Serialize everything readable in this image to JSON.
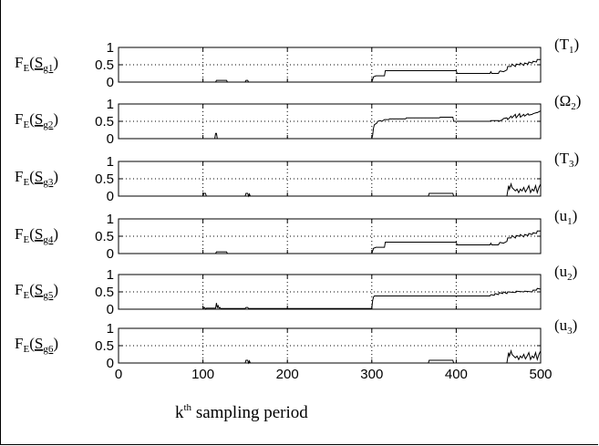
{
  "chart_data": {
    "type": "line",
    "xlabel": {
      "base": "k",
      "sup": "th",
      "rest": " sampling period"
    },
    "xlim": [
      0,
      500
    ],
    "xticks": [
      0,
      100,
      200,
      300,
      400,
      500
    ],
    "panels": [
      {
        "ylabel": {
          "pre": "F",
          "sub": "E",
          "open": "(",
          "S": "S",
          "g": "g1",
          "close": ")"
        },
        "right_label": {
          "pre": "(T",
          "sub": "1",
          "post": ")"
        },
        "ylim": [
          0,
          1
        ],
        "yticks": [
          0,
          0.5,
          1
        ],
        "series": [
          {
            "x": [
              0,
              115,
              116,
              128,
              129,
              150,
              151,
              153,
              154,
              300,
              302,
              305,
              315,
              316,
              400,
              401,
              405,
              440,
              441,
              442,
              450,
              451,
              452,
              456,
              460,
              461,
              465,
              466,
              470,
              471,
              475,
              476,
              480,
              481,
              485,
              486,
              490,
              491,
              495,
              496,
              500
            ],
            "y": [
              0,
              0,
              0.05,
              0.05,
              0,
              0,
              0.05,
              0.05,
              0,
              0,
              0.15,
              0.18,
              0.18,
              0.33,
              0.33,
              0.25,
              0.25,
              0.25,
              0.3,
              0.25,
              0.25,
              0.3,
              0.32,
              0.3,
              0.35,
              0.45,
              0.45,
              0.52,
              0.45,
              0.52,
              0.5,
              0.55,
              0.48,
              0.55,
              0.52,
              0.58,
              0.55,
              0.6,
              0.58,
              0.65,
              0.65
            ]
          }
        ]
      },
      {
        "ylabel": {
          "pre": "F",
          "sub": "E",
          "open": "(",
          "S": "S",
          "g": "g2",
          "close": ")"
        },
        "right_label": {
          "pre": "(Ω",
          "sub": "2",
          "post": ")"
        },
        "ylim": [
          0,
          1
        ],
        "yticks": [
          0,
          0.5,
          1
        ],
        "series": [
          {
            "x": [
              0,
              114,
              115,
              116,
              117,
              300,
              301,
              302,
              303,
              306,
              307,
              310,
              312,
              315,
              320,
              321,
              340,
              341,
              380,
              381,
              396,
              397,
              440,
              441,
              450,
              451,
              455,
              456,
              460,
              461,
              465,
              466,
              470,
              471,
              475,
              476,
              480,
              481,
              485,
              486,
              490,
              491,
              495,
              496,
              500
            ],
            "y": [
              0,
              0,
              0.15,
              0.15,
              0,
              0,
              0.1,
              0.3,
              0.4,
              0.45,
              0.5,
              0.52,
              0.5,
              0.55,
              0.55,
              0.57,
              0.57,
              0.6,
              0.6,
              0.62,
              0.62,
              0.5,
              0.5,
              0.52,
              0.52,
              0.5,
              0.55,
              0.58,
              0.6,
              0.55,
              0.65,
              0.6,
              0.7,
              0.6,
              0.72,
              0.62,
              0.7,
              0.65,
              0.72,
              0.68,
              0.7,
              0.72,
              0.75,
              0.75,
              0.8
            ]
          }
        ]
      },
      {
        "ylabel": {
          "pre": "F",
          "sub": "E",
          "open": "(",
          "S": "S",
          "g": "g3",
          "close": ")"
        },
        "right_label": {
          "pre": "(T",
          "sub": "3",
          "post": ")"
        },
        "ylim": [
          0,
          1
        ],
        "yticks": [
          0,
          0.5,
          1
        ],
        "series": [
          {
            "x": [
              0,
              100,
              101,
              103,
              104,
              150,
              151,
              153,
              154,
              155,
              156,
              367,
              368,
              396,
              397,
              460,
              462,
              463,
              465,
              466,
              468,
              470,
              472,
              474,
              476,
              478,
              480,
              482,
              484,
              486,
              488,
              490,
              492,
              494,
              496,
              498,
              500
            ],
            "y": [
              0,
              0,
              0.08,
              0.08,
              0,
              0,
              0.08,
              0.08,
              0,
              0.06,
              0,
              0,
              0.08,
              0.08,
              0,
              0,
              0.3,
              0.2,
              0.35,
              0.25,
              0.2,
              0.15,
              0.2,
              0.1,
              0.2,
              0.15,
              0.25,
              0.12,
              0.2,
              0.3,
              0.1,
              0.2,
              0.15,
              0.3,
              0.1,
              0.25,
              0.35
            ]
          }
        ]
      },
      {
        "ylabel": {
          "pre": "F",
          "sub": "E",
          "open": "(",
          "S": "S",
          "g": "g4",
          "close": ")"
        },
        "right_label": {
          "pre": "(u",
          "sub": "1",
          "post": ")"
        },
        "ylim": [
          0,
          1
        ],
        "yticks": [
          0,
          0.5,
          1
        ],
        "series": [
          {
            "x": [
              0,
              115,
              116,
              128,
              129,
              300,
              302,
              305,
              315,
              316,
              400,
              401,
              405,
              440,
              441,
              442,
              450,
              451,
              452,
              456,
              460,
              461,
              465,
              466,
              470,
              471,
              475,
              476,
              480,
              481,
              485,
              486,
              490,
              491,
              495,
              496,
              500
            ],
            "y": [
              0,
              0,
              0.05,
              0.05,
              0,
              0,
              0.15,
              0.18,
              0.18,
              0.33,
              0.33,
              0.25,
              0.25,
              0.25,
              0.3,
              0.25,
              0.25,
              0.3,
              0.32,
              0.3,
              0.35,
              0.45,
              0.45,
              0.52,
              0.45,
              0.52,
              0.5,
              0.55,
              0.48,
              0.55,
              0.52,
              0.58,
              0.55,
              0.6,
              0.58,
              0.65,
              0.65
            ]
          }
        ]
      },
      {
        "ylabel": {
          "pre": "F",
          "sub": "E",
          "open": "(",
          "S": "S",
          "g": "g5",
          "close": ")"
        },
        "right_label": {
          "pre": "(u",
          "sub": "2",
          "post": ")"
        },
        "ylim": [
          0,
          1
        ],
        "yticks": [
          0,
          0.5,
          1
        ],
        "series": [
          {
            "x": [
              0,
              100,
              101,
              102,
              103,
              104,
              115,
              116,
              117,
              118,
              119,
              120,
              121,
              150,
              151,
              153,
              154,
              300,
              301,
              302,
              303,
              440,
              441,
              445,
              446,
              450,
              451,
              455,
              456,
              460,
              461,
              470,
              471,
              480,
              481,
              490,
              491,
              495,
              496,
              500
            ],
            "y": [
              0,
              0,
              0.05,
              0.05,
              0,
              0.03,
              0.03,
              0.18,
              0.05,
              0.1,
              0.03,
              0.05,
              0.02,
              0.02,
              0.05,
              0.05,
              0.02,
              0.02,
              0.25,
              0.35,
              0.38,
              0.38,
              0.42,
              0.4,
              0.45,
              0.42,
              0.48,
              0.45,
              0.5,
              0.45,
              0.5,
              0.48,
              0.52,
              0.5,
              0.52,
              0.5,
              0.55,
              0.55,
              0.6,
              0.58
            ]
          }
        ]
      },
      {
        "ylabel": {
          "pre": "F",
          "sub": "E",
          "open": "(",
          "S": "S",
          "g": "g6",
          "close": ")"
        },
        "right_label": {
          "pre": "(u",
          "sub": "3",
          "post": ")"
        },
        "ylim": [
          0,
          1
        ],
        "yticks": [
          0,
          0.5,
          1
        ],
        "series": [
          {
            "x": [
              0,
              150,
              151,
              153,
              154,
              155,
              156,
              367,
              368,
              396,
              397,
              460,
              462,
              463,
              465,
              466,
              468,
              470,
              472,
              474,
              476,
              478,
              480,
              482,
              484,
              486,
              488,
              490,
              492,
              494,
              496,
              498,
              500
            ],
            "y": [
              0,
              0,
              0.08,
              0.08,
              0,
              0.06,
              0,
              0,
              0.08,
              0.08,
              0,
              0,
              0.3,
              0.2,
              0.35,
              0.25,
              0.2,
              0.15,
              0.2,
              0.1,
              0.2,
              0.15,
              0.25,
              0.12,
              0.2,
              0.3,
              0.1,
              0.2,
              0.15,
              0.3,
              0.1,
              0.25,
              0.35
            ]
          }
        ]
      }
    ]
  }
}
